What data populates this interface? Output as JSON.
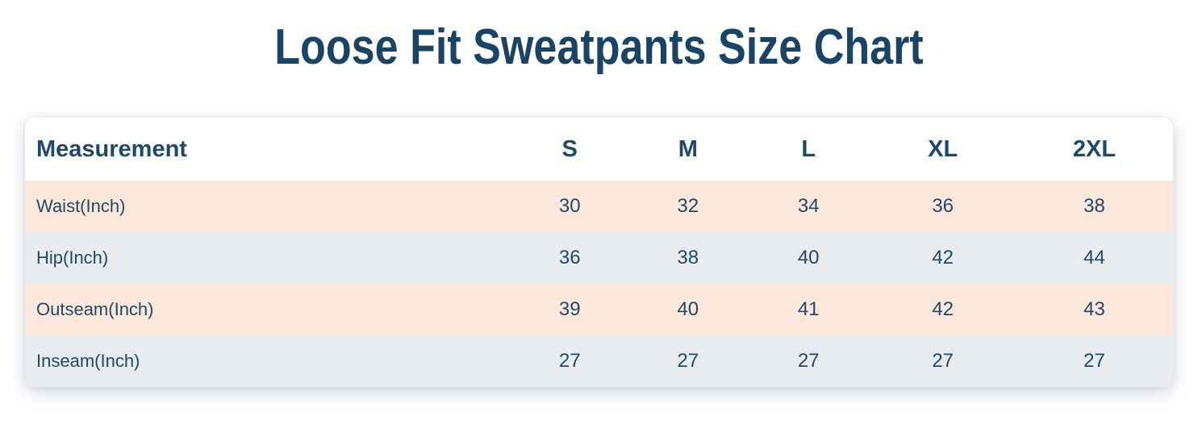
{
  "page": {
    "title": "Loose Fit Sweatpants Size Chart"
  },
  "colors": {
    "title_text": "#1a4466",
    "body_text": "#1e4a68",
    "row_peach": "#fce8db",
    "row_blue": "#e8ecef",
    "card_bg": "#ffffff",
    "page_bg": "#ffffff"
  },
  "chart_data": {
    "type": "table",
    "title": "Loose Fit Sweatpants Size Chart",
    "columns": [
      "Measurement",
      "S",
      "M",
      "L",
      "XL",
      "2XL"
    ],
    "rows": [
      [
        "Waist(Inch)",
        30,
        32,
        34,
        36,
        38
      ],
      [
        "Hip(Inch)",
        36,
        38,
        40,
        42,
        44
      ],
      [
        "Outseam(Inch)",
        39,
        40,
        41,
        42,
        43
      ],
      [
        "Inseam(Inch)",
        27,
        27,
        27,
        27,
        27
      ]
    ]
  }
}
